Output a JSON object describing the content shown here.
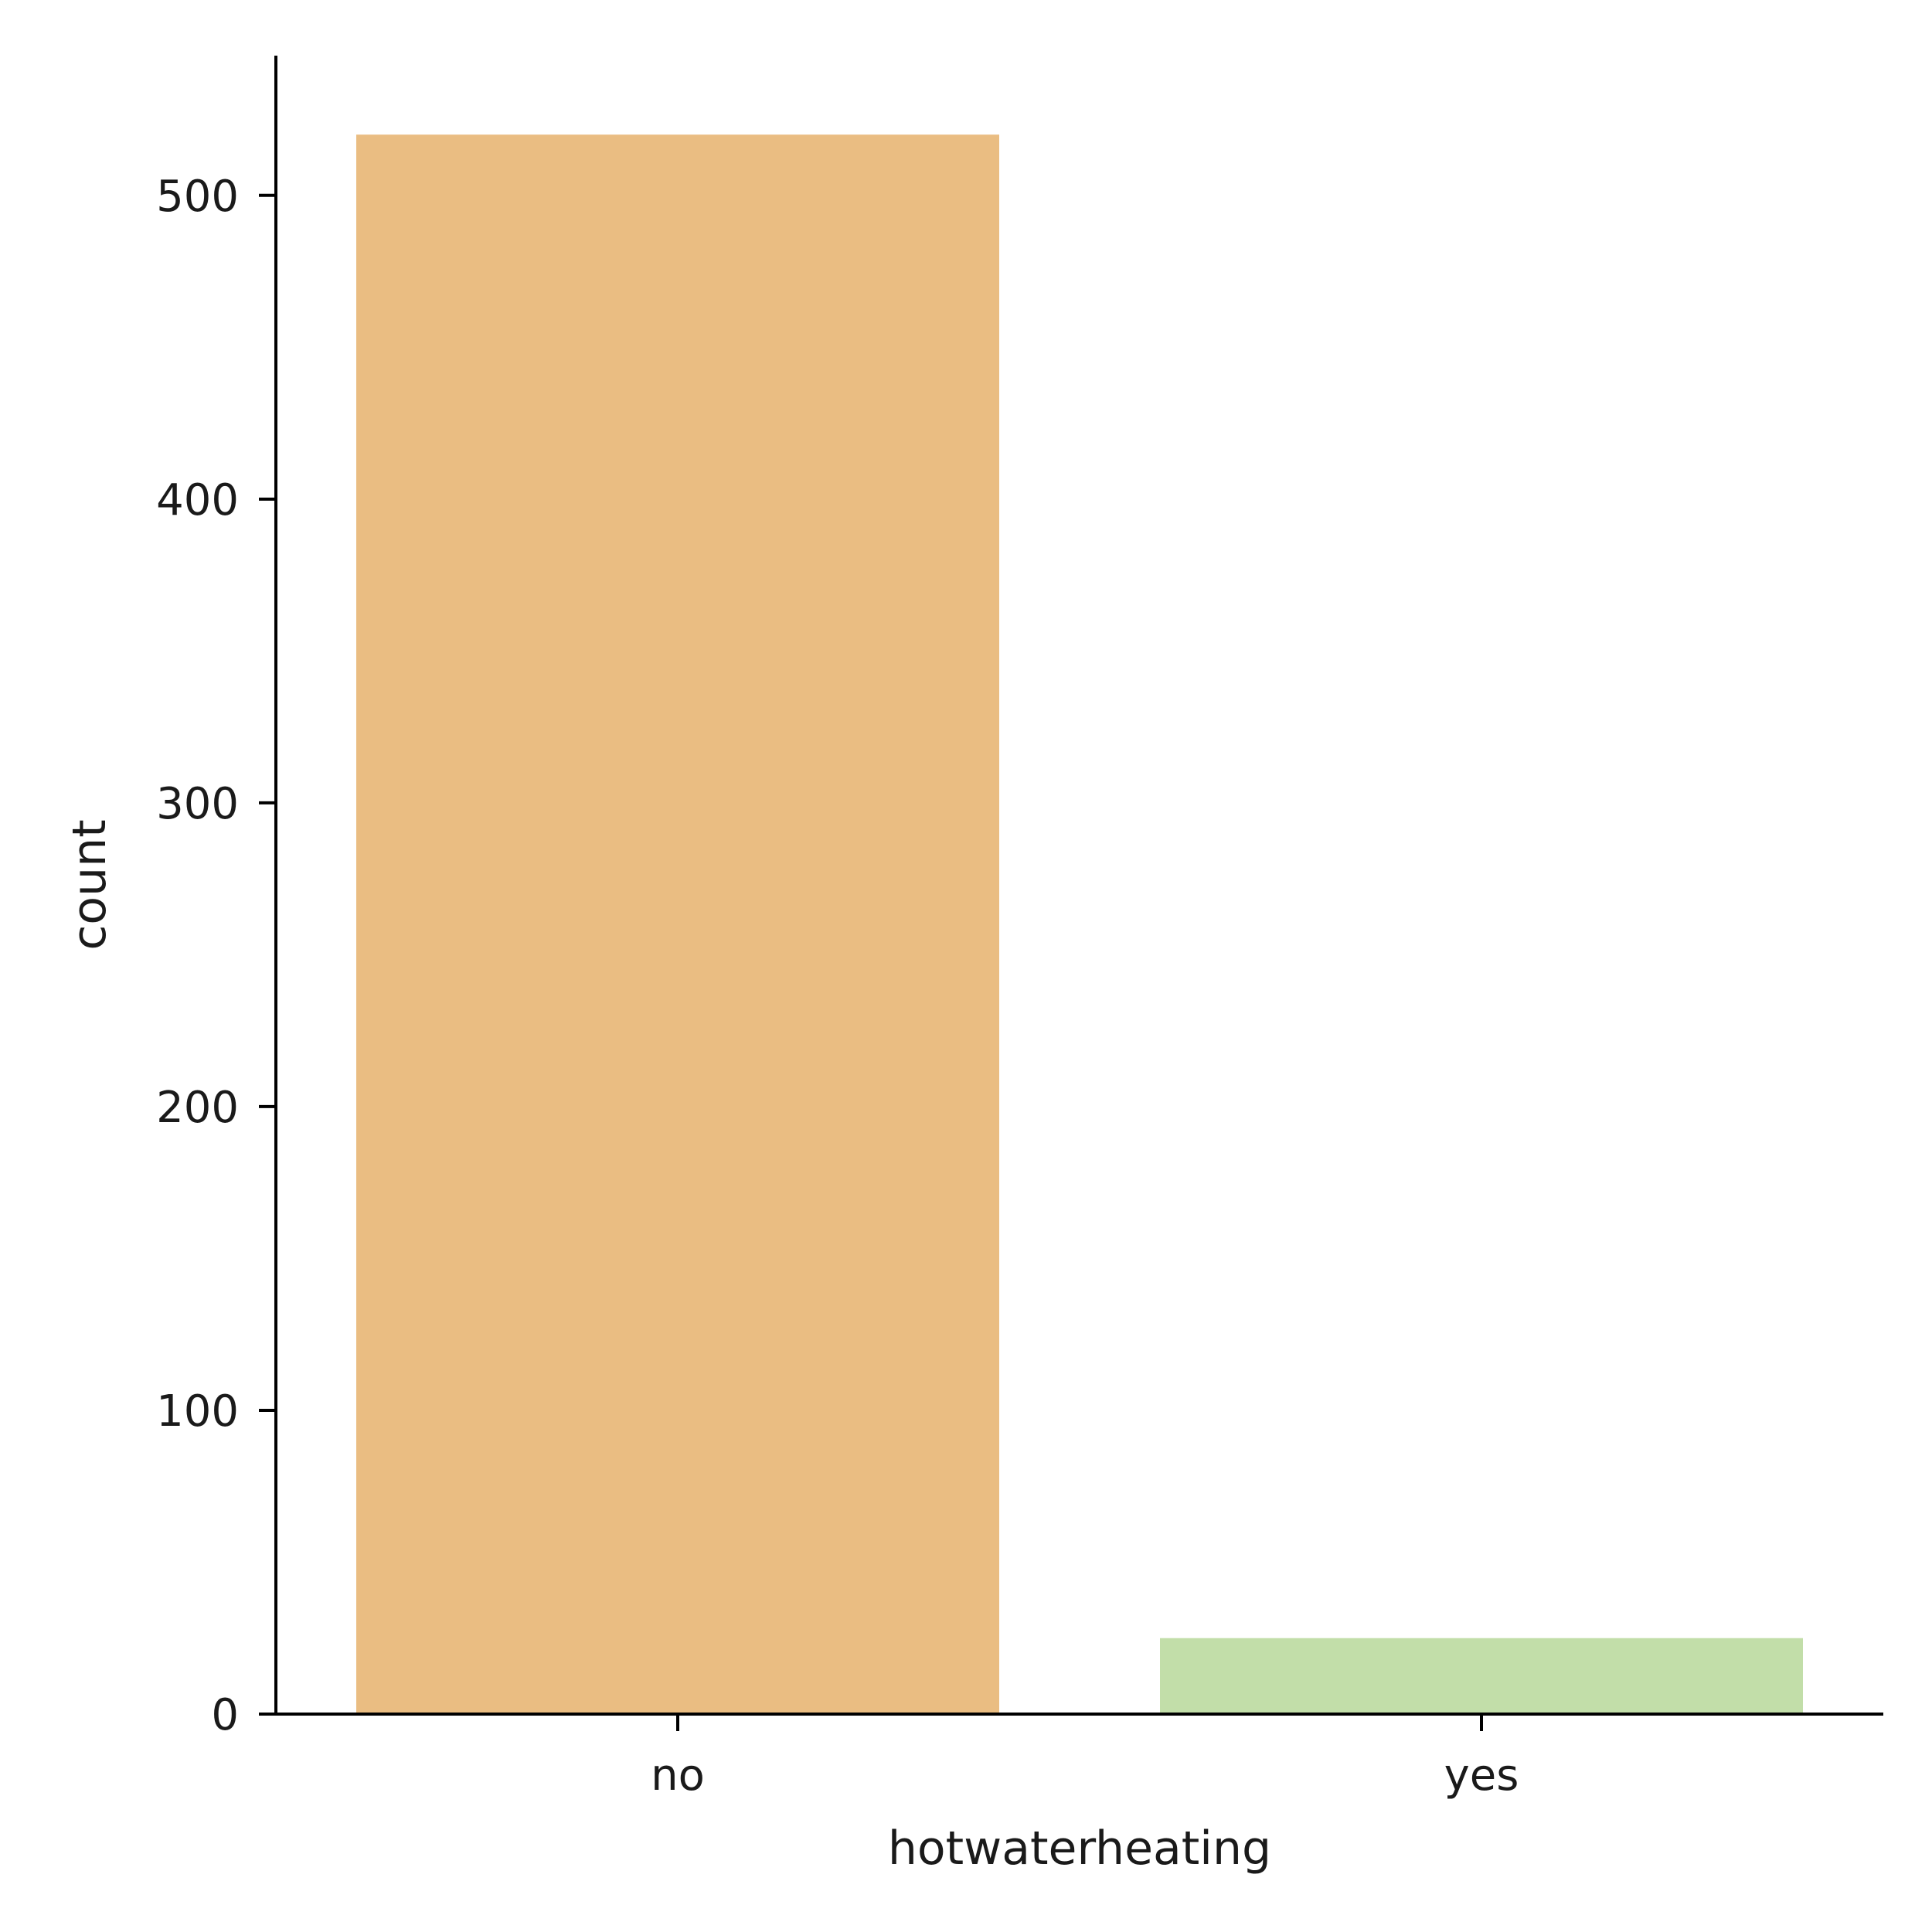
{
  "chart_data": {
    "type": "bar",
    "categories": [
      "no",
      "yes"
    ],
    "values": [
      520,
      25
    ],
    "colors": [
      "#eabd82",
      "#c2dea9"
    ],
    "title": "",
    "xlabel": "hotwaterheating",
    "ylabel": "count",
    "ylim": [
      0,
      546
    ],
    "yticks": [
      0,
      100,
      200,
      300,
      400,
      500
    ],
    "grid": false,
    "legend": "none"
  }
}
